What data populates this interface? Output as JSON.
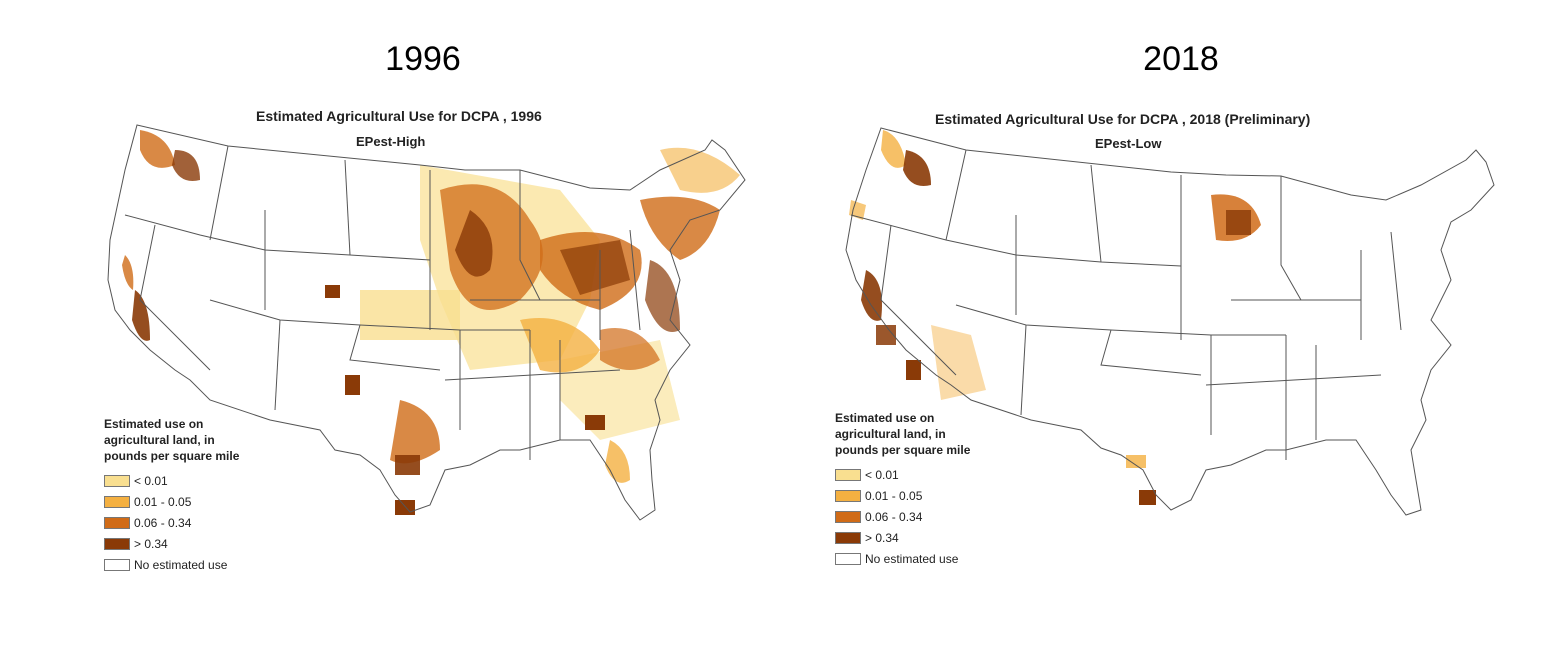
{
  "panels": [
    {
      "year": "1996",
      "map_title": "Estimated Agricultural Use for DCPA , 1996",
      "map_subtitle": "EPest-High",
      "legend": {
        "title_lines": [
          "Estimated use on",
          "agricultural land, in",
          "pounds per square mile"
        ],
        "items": [
          "< 0.01",
          "0.01 - 0.05",
          "0.06 - 0.34",
          "> 0.34",
          "No estimated use"
        ]
      }
    },
    {
      "year": "2018",
      "map_title": "Estimated Agricultural Use for DCPA , 2018 (Preliminary)",
      "map_subtitle": "EPest-Low",
      "legend": {
        "title_lines": [
          "Estimated use on",
          "agricultural land, in",
          "pounds per square mile"
        ],
        "items": [
          "< 0.01",
          "0.01 - 0.05",
          "0.06 - 0.34",
          "> 0.34",
          "No estimated use"
        ]
      }
    }
  ],
  "colors": {
    "class_lt_0_01": "#f9df90",
    "class_0_01_0_05": "#f4b041",
    "class_0_06_0_34": "#d06b17",
    "class_gt_0_34": "#8a3a07",
    "no_use": "#ffffff",
    "state_border": "#555555"
  }
}
